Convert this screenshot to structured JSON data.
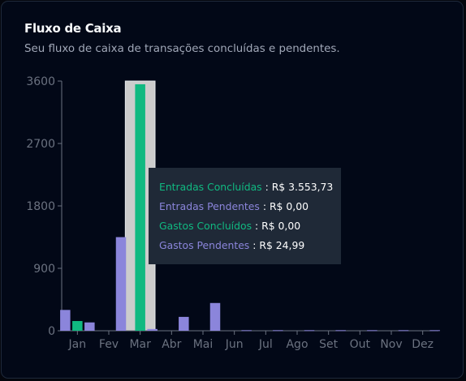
{
  "card": {
    "title": "Fluxo de Caixa",
    "subtitle": "Seu fluxo de caixa de transações concluídas e pendentes."
  },
  "colors": {
    "entradas_concluidas": "#10b981",
    "entradas_pendentes": "#8b85db",
    "gastos_concluidos": "#10b981",
    "gastos_pendentes": "#8b85db",
    "hover_band": "#cccccc",
    "axis_text": "#6b7280",
    "tooltip_bg": "#1f2937"
  },
  "chart_data": {
    "type": "bar",
    "categories": [
      "Jan",
      "Fev",
      "Mar",
      "Abr",
      "Mai",
      "Jun",
      "Jul",
      "Ago",
      "Set",
      "Out",
      "Nov",
      "Dez"
    ],
    "series": [
      {
        "name": "Entradas Pendentes",
        "values": [
          300,
          0,
          0,
          0,
          0,
          0,
          0,
          0,
          0,
          0,
          0,
          0
        ]
      },
      {
        "name": "Entradas Concluídas",
        "values": [
          140,
          0,
          3553.73,
          0,
          0,
          0,
          0,
          0,
          0,
          0,
          0,
          0
        ]
      },
      {
        "name": "Gastos Pendentes",
        "values": [
          120,
          1350,
          24.99,
          200,
          400,
          8,
          8,
          8,
          8,
          8,
          8,
          8
        ]
      }
    ],
    "y_ticks": [
      0,
      900,
      1800,
      2700,
      3600
    ],
    "ylim": [
      0,
      3600
    ],
    "grid": false,
    "highlighted_category": "Mar"
  },
  "tooltip": {
    "rows": [
      {
        "label": "Entradas Concluídas",
        "separator": " : ",
        "value": "R$ 3.553,73",
        "color": "#10b981"
      },
      {
        "label": "Entradas Pendentes",
        "separator": " : ",
        "value": "R$ 0,00",
        "color": "#8b85db"
      },
      {
        "label": "Gastos Concluídos",
        "separator": " : ",
        "value": "R$ 0,00",
        "color": "#10b981"
      },
      {
        "label": "Gastos Pendentes",
        "separator": " : ",
        "value": "R$ 24,99",
        "color": "#8b85db"
      }
    ]
  }
}
